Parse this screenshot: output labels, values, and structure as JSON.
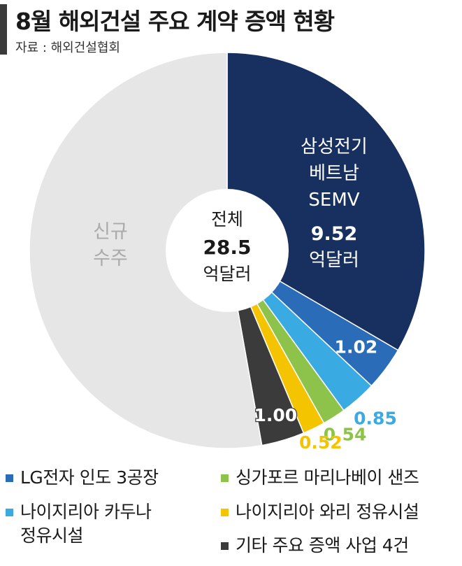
{
  "header": {
    "title": "8월 해외건설 주요 계약 증액 현황",
    "source": "자료 : 해외건설협회"
  },
  "center": {
    "line1": "전체",
    "value": "28.5",
    "unit": "억달러"
  },
  "slice_labels": {
    "samsung_name": [
      "삼성전기",
      "베트남",
      "SEMV"
    ],
    "samsung_value": "9.52",
    "samsung_unit": "억달러",
    "new_orders": [
      "신규",
      "수주"
    ]
  },
  "legend": [
    {
      "label": "LG전자 인도 3공장",
      "color": "#2a6cb8"
    },
    {
      "label": "싱가포르 마리나베이 샌즈",
      "color": "#8dc34a"
    },
    {
      "label": "나이지리아 카두나\n정유시설",
      "color": "#3aaae2"
    },
    {
      "label": "나이지리아 와리 정유시설",
      "color": "#f5c400"
    },
    {
      "label": "기타 주요 증액 사업 4건",
      "color": "#3b3b3b"
    }
  ],
  "chart_data": {
    "type": "pie",
    "title": "8월 해외건설 주요 계약 증액 현황",
    "unit": "억달러",
    "total": 28.5,
    "slices": [
      {
        "label": "삼성전기 베트남 SEMV",
        "value": 9.52,
        "color": "#17305f"
      },
      {
        "label": "LG전자 인도 3공장",
        "value": 1.02,
        "color": "#2a6cb8"
      },
      {
        "label": "나이지리아 카두나 정유시설",
        "value": 0.85,
        "color": "#3aaae2"
      },
      {
        "label": "싱가포르 마리나베이 샌즈",
        "value": 0.54,
        "color": "#8dc34a"
      },
      {
        "label": "나이지리아 와리 정유시설",
        "value": 0.52,
        "color": "#f5c400"
      },
      {
        "label": "기타 주요 증액 사업 4건",
        "value": 1.0,
        "color": "#3b3b3b"
      },
      {
        "label": "신규 수주",
        "value": 15.05,
        "color": "#e6e6e6"
      }
    ],
    "value_labels": [
      "9.52",
      "1.02",
      "0.85",
      "0.54",
      "0.52",
      "1.00"
    ]
  }
}
